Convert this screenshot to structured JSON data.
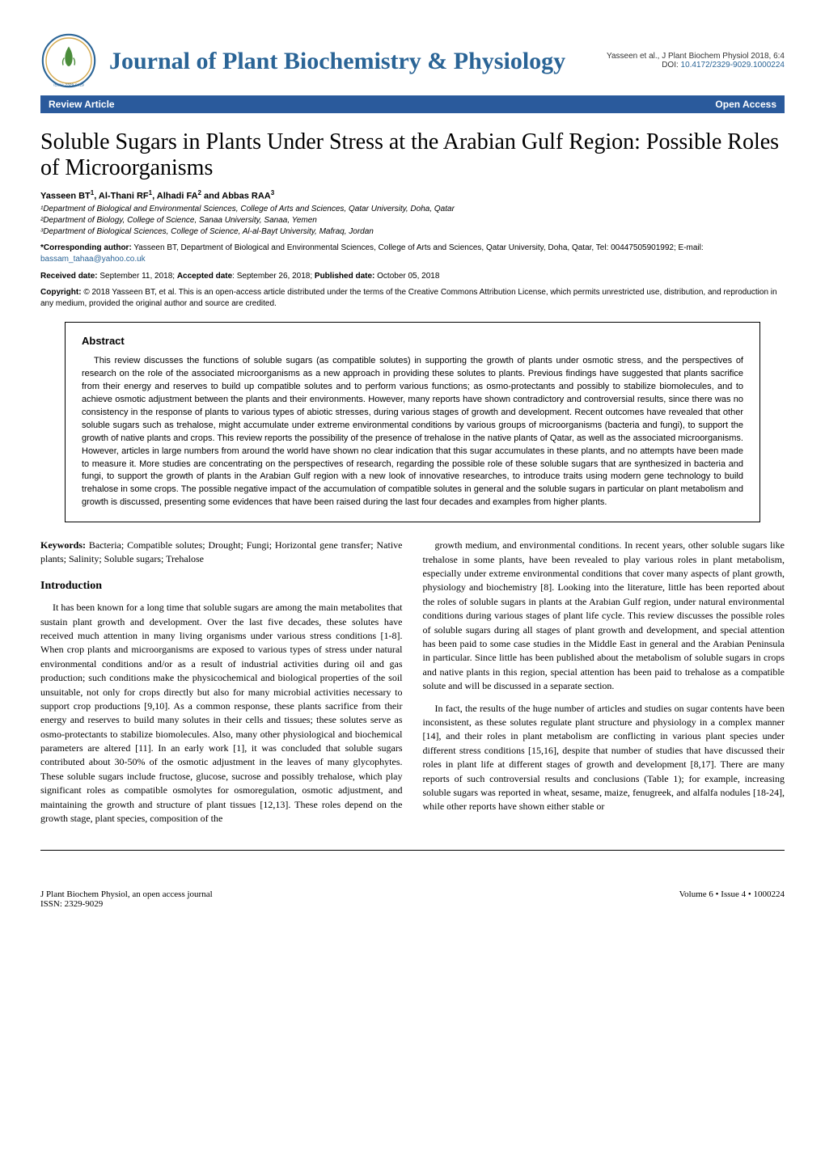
{
  "header": {
    "journal_title": "Journal of Plant Biochemistry & Physiology",
    "citation_line": "Yasseen et al., J Plant Biochem Physiol 2018, 6:4",
    "doi_label": "DOI: ",
    "doi": "10.4172/2329-9029.1000224",
    "issn": "ISSN: 2329-9029"
  },
  "banner": {
    "left": "Review Article",
    "right": "Open Access"
  },
  "article": {
    "title": "Soluble Sugars in Plants Under Stress at the Arabian Gulf Region: Possible Roles of Microorganisms",
    "authors_html": "Yasseen BT<sup>1</sup>, Al-Thani RF<sup>1</sup>, Alhadi FA<sup>2</sup> and Abbas RAA<sup>3</sup>",
    "affiliations": [
      "¹Department of Biological and Environmental Sciences, College of Arts and Sciences, Qatar University, Doha, Qatar",
      "²Department of Biology, College of Science, Sanaa University, Sanaa, Yemen",
      "³Department of Biological Sciences, College of Science, Al-al-Bayt University, Mafraq, Jordan"
    ],
    "corresponding_label": "*Corresponding author:",
    "corresponding_text": " Yasseen BT, Department of Biological and Environmental Sciences, College of Arts and Sciences, Qatar University, Doha, Qatar, Tel: 00447505901992; E-mail: ",
    "corresponding_email": "bassam_tahaa@yahoo.co.uk",
    "received_label": "Received date:",
    "received": " September 11, 2018; ",
    "accepted_label": "Accepted date",
    "accepted": ": September 26, 2018; ",
    "published_label": "Published date:",
    "published": " October 05, 2018",
    "copyright_label": "Copyright:",
    "copyright_text": " © 2018 Yasseen BT, et al. This is an open-access article distributed under the terms of the Creative Commons Attribution License, which permits unrestricted use, distribution, and reproduction in any medium, provided the original author and source are credited."
  },
  "abstract": {
    "heading": "Abstract",
    "text": "This review discusses the functions of soluble sugars (as compatible solutes) in supporting the growth of plants under osmotic stress, and the perspectives of research on the role of the associated microorganisms as a new approach in providing these solutes to plants. Previous findings have suggested that plants sacrifice from their energy and reserves to build up compatible solutes and to perform various functions; as osmo-protectants and possibly to stabilize biomolecules, and to achieve osmotic adjustment between the plants and their environments. However, many reports have shown contradictory and controversial results, since there was no consistency in the response of plants to various types of abiotic stresses, during various stages of growth and development. Recent outcomes have revealed that other soluble sugars such as trehalose, might accumulate under extreme environmental conditions by various groups of microorganisms (bacteria and fungi), to support the growth of native plants and crops. This review reports the possibility of the presence of trehalose in the native plants of Qatar, as well as the associated microorganisms. However, articles in large numbers from around the world have shown no clear indication that this sugar accumulates in these plants, and no attempts have been made to measure it. More studies are concentrating on the perspectives of research, regarding the possible role of these soluble sugars that are synthesized in bacteria and fungi, to support the growth of plants in the Arabian Gulf region with a new look of innovative researches, to introduce traits using modern gene technology to build trehalose in some crops. The possible negative impact of the accumulation of compatible solutes in general and the soluble sugars in particular on plant metabolism and growth is discussed, presenting some evidences that have been raised during the last four decades and examples from higher plants."
  },
  "keywords": {
    "label": "Keywords:",
    "text": " Bacteria; Compatible solutes; Drought; Fungi; Horizontal gene transfer; Native plants; Salinity; Soluble sugars; Trehalose"
  },
  "intro": {
    "heading": "Introduction",
    "para1": "It has been known for a long time that soluble sugars are among the main metabolites that sustain plant growth and development. Over the last five decades, these solutes have received much attention in many living organisms under various stress conditions [1-8]. When crop plants and microorganisms are exposed to various types of stress under natural environmental conditions and/or as a result of industrial activities during oil and gas production; such conditions make the physicochemical and biological properties of the soil unsuitable, not only for crops directly but also for many microbial activities necessary to support crop productions [9,10]. As a common response, these plants sacrifice from their energy and reserves to build many solutes in their cells and tissues; these solutes serve as osmo-protectants to stabilize biomolecules. Also, many other physiological and biochemical parameters are altered [11]. In an early work [1], it was concluded that soluble sugars contributed about 30-50% of the osmotic adjustment in the leaves of many glycophytes. These soluble sugars include fructose, glucose, sucrose and possibly trehalose, which play significant roles as compatible osmolytes for osmoregulation, osmotic adjustment, and maintaining the growth and structure of plant tissues [12,13]. These roles depend on the growth stage, plant species, composition of the",
    "para2": "growth medium, and environmental conditions. In recent years, other soluble sugars like trehalose in some plants, have been revealed to play various roles in plant metabolism, especially under extreme environmental conditions that cover many aspects of plant growth, physiology and biochemistry [8]. Looking into the literature, little has been reported about the roles of soluble sugars in plants at the Arabian Gulf region, under natural environmental conditions during various stages of plant life cycle. This review discusses the possible roles of soluble sugars during all stages of plant growth and development, and special attention has been paid to some case studies in the Middle East in general and the Arabian Peninsula in particular. Since little has been published about the metabolism of soluble sugars in crops and native plants in this region, special attention has been paid to trehalose as a compatible solute and will be discussed in a separate section.",
    "para3": "In fact, the results of the huge number of articles and studies on sugar contents have been inconsistent, as these solutes regulate plant structure and physiology in a complex manner [14], and their roles in plant metabolism are conflicting in various plant species under different stress conditions [15,16], despite that number of studies that have discussed their roles in plant life at different stages of growth and development [8,17]. There are many reports of such controversial results and conclusions (Table 1); for example, increasing soluble sugars was reported in wheat, sesame, maize, fenugreek, and alfalfa nodules [18-24], while other reports have shown either stable or"
  },
  "footer": {
    "left_line1": "J Plant Biochem Physiol, an open access journal",
    "left_line2": "ISSN: 2329-9029",
    "right": "Volume 6 • Issue 4 • 1000224"
  },
  "colors": {
    "banner_bg": "#2a5a9c",
    "link_blue": "#2a6496",
    "text": "#000000"
  }
}
